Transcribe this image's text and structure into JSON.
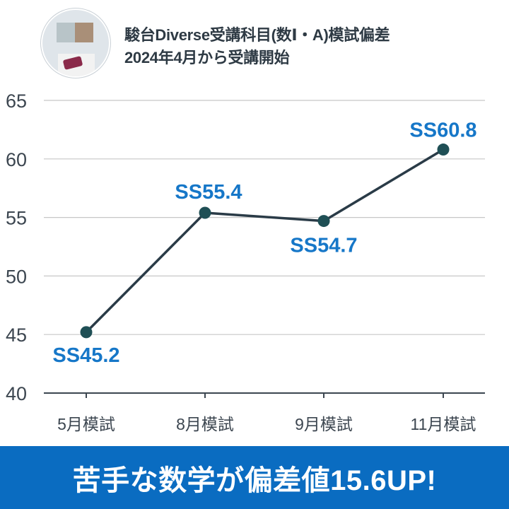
{
  "header": {
    "title_line1": "駿台Diverse受講科目(数Ⅰ・A)模試偏差",
    "title_line2": "2024年4月から受講開始"
  },
  "chart_data": {
    "type": "line",
    "categories": [
      "5月模試",
      "8月模試",
      "9月模試",
      "11月模試"
    ],
    "values": [
      45.2,
      55.4,
      54.7,
      60.8
    ],
    "data_labels": [
      "SS45.2",
      "SS55.4",
      "SS54.7",
      "SS60.8"
    ],
    "yticks": [
      "40",
      "45",
      "50",
      "55",
      "60",
      "65"
    ],
    "ylim": [
      40,
      65
    ],
    "grid": true,
    "line_color": "#2a3b47",
    "point_color": "#1f4f55",
    "label_color": "#1677c8"
  },
  "banner": {
    "text": "苦手な数学が偏差値15.6UP!"
  }
}
